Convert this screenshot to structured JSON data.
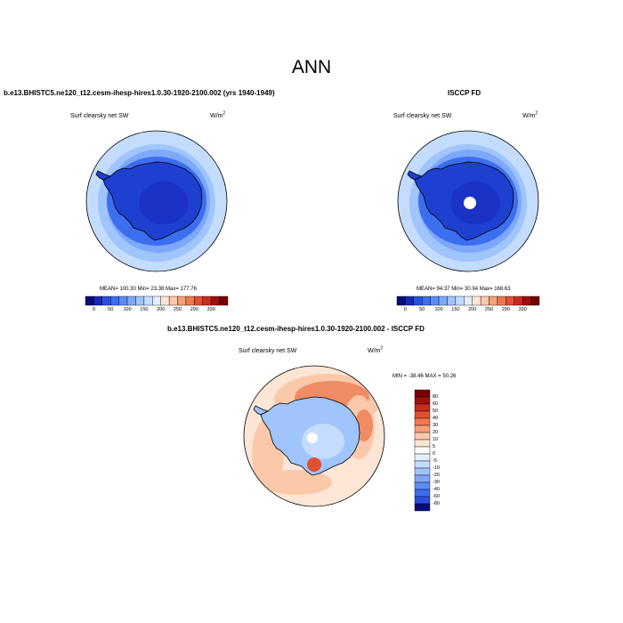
{
  "title": "ANN",
  "panels": [
    {
      "id": "model",
      "title": "b.e13.BHISTC5.ne120_t12.cesm-ihesp-hires1.0.30-1920-2100.002 (yrs 1940-1949)",
      "variable": "Surf clearsky net SW",
      "units_base": "W/m",
      "units_exp": "2",
      "stats": "MEAN= 100.30  Min=  23.38  Max= 177.76"
    },
    {
      "id": "obs",
      "title": "ISCCP FD",
      "variable": "Surf clearsky net SW",
      "units_base": "W/m",
      "units_exp": "2",
      "stats": "MEAN= 94.37  Min=  30.94  Max= 168.63"
    },
    {
      "id": "diff",
      "title": "b.e13.BHISTC5.ne120_t12.cesm-ihesp-hires1.0.30-1920-2100.002 - ISCCP FD",
      "variable": "Surf clearsky net SW",
      "units_base": "W/m",
      "units_exp": "2",
      "stats": "MIN = -38.46 MAX =  50.26"
    }
  ],
  "colorbar_abs": {
    "labels": [
      "0",
      "50",
      "100",
      "150",
      "200",
      "250",
      "290",
      "330"
    ],
    "colors": [
      "#0a0a78",
      "#1428b4",
      "#2850dc",
      "#3c6ef0",
      "#5a8cf5",
      "#7ea8fa",
      "#a0c4fc",
      "#c4dcfe",
      "#e2eefe",
      "#fde6d6",
      "#fcc8aa",
      "#f8a078",
      "#f07850",
      "#e05032",
      "#c82c1e",
      "#a01010",
      "#780000"
    ]
  },
  "colorbar_diff": {
    "labels": [
      "80",
      "60",
      "50",
      "40",
      "30",
      "20",
      "10",
      "5",
      "0",
      "-5",
      "-10",
      "-20",
      "-30",
      "-40",
      "-60",
      "-80"
    ],
    "colors": [
      "#780000",
      "#a01010",
      "#c82c1e",
      "#e05032",
      "#f07850",
      "#f8a078",
      "#fcc8aa",
      "#fde6d6",
      "#ffffff",
      "#e2eefe",
      "#c4dcfe",
      "#a0c4fc",
      "#7ea8fa",
      "#5a8cf5",
      "#3c6ef0",
      "#2850dc",
      "#0a0a78"
    ]
  },
  "map_colors": {
    "ocean_far": "#c4dcfe",
    "ocean_mid": "#a0c4fc",
    "ocean_near": "#7ea8fa",
    "ice_ring": "#3c6ef0",
    "continent": "#1f3fd0",
    "plateau": "#1a33c4",
    "diff_warm": "#f08c64",
    "diff_warm_light": "#fcc8aa",
    "diff_neutral": "#fde6d6",
    "diff_cool": "#a0c4fc",
    "diff_cool_light": "#c4dcfe",
    "missing": "#ffffff",
    "coast": "#000000"
  }
}
